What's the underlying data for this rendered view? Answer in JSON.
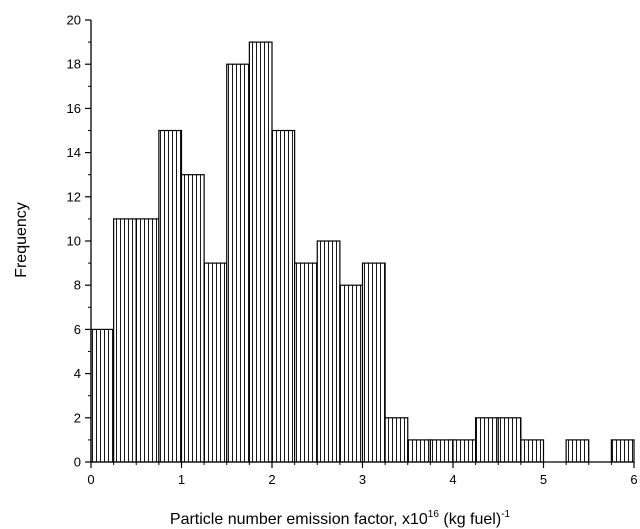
{
  "chart_data": {
    "type": "bar",
    "subtype": "histogram",
    "bin_width": 0.25,
    "x_range": [
      0,
      6
    ],
    "ylim": [
      0,
      20
    ],
    "x_ticks": [
      0,
      1,
      2,
      3,
      4,
      5,
      6
    ],
    "y_ticks": [
      0,
      2,
      4,
      6,
      8,
      10,
      12,
      14,
      16,
      18,
      20
    ],
    "bins": [
      {
        "start": 0.0,
        "end": 0.25,
        "value": 6
      },
      {
        "start": 0.25,
        "end": 0.5,
        "value": 11
      },
      {
        "start": 0.5,
        "end": 0.75,
        "value": 11
      },
      {
        "start": 0.75,
        "end": 1.0,
        "value": 15
      },
      {
        "start": 1.0,
        "end": 1.25,
        "value": 13
      },
      {
        "start": 1.25,
        "end": 1.5,
        "value": 9
      },
      {
        "start": 1.5,
        "end": 1.75,
        "value": 18
      },
      {
        "start": 1.75,
        "end": 2.0,
        "value": 19
      },
      {
        "start": 2.0,
        "end": 2.25,
        "value": 15
      },
      {
        "start": 2.25,
        "end": 2.5,
        "value": 9
      },
      {
        "start": 2.5,
        "end": 2.75,
        "value": 10
      },
      {
        "start": 2.75,
        "end": 3.0,
        "value": 8
      },
      {
        "start": 3.0,
        "end": 3.25,
        "value": 9
      },
      {
        "start": 3.25,
        "end": 3.5,
        "value": 2
      },
      {
        "start": 3.5,
        "end": 3.75,
        "value": 1
      },
      {
        "start": 3.75,
        "end": 4.0,
        "value": 1
      },
      {
        "start": 4.0,
        "end": 4.25,
        "value": 1
      },
      {
        "start": 4.25,
        "end": 4.5,
        "value": 2
      },
      {
        "start": 4.5,
        "end": 4.75,
        "value": 2
      },
      {
        "start": 4.75,
        "end": 5.0,
        "value": 1
      },
      {
        "start": 5.0,
        "end": 5.25,
        "value": 0
      },
      {
        "start": 5.25,
        "end": 5.5,
        "value": 1
      },
      {
        "start": 5.5,
        "end": 5.75,
        "value": 0
      },
      {
        "start": 5.75,
        "end": 6.0,
        "value": 1
      }
    ],
    "ylabel": "Frequency",
    "xlabel": {
      "prefix": "Particle number emission factor, x10",
      "sup1": "16",
      "middle": " (kg fuel)",
      "sup2": "-1"
    },
    "bar_fill": "vertical-hatch",
    "bar_color": "#000000",
    "background": "#ffffff",
    "grid": false,
    "legend": "none"
  }
}
